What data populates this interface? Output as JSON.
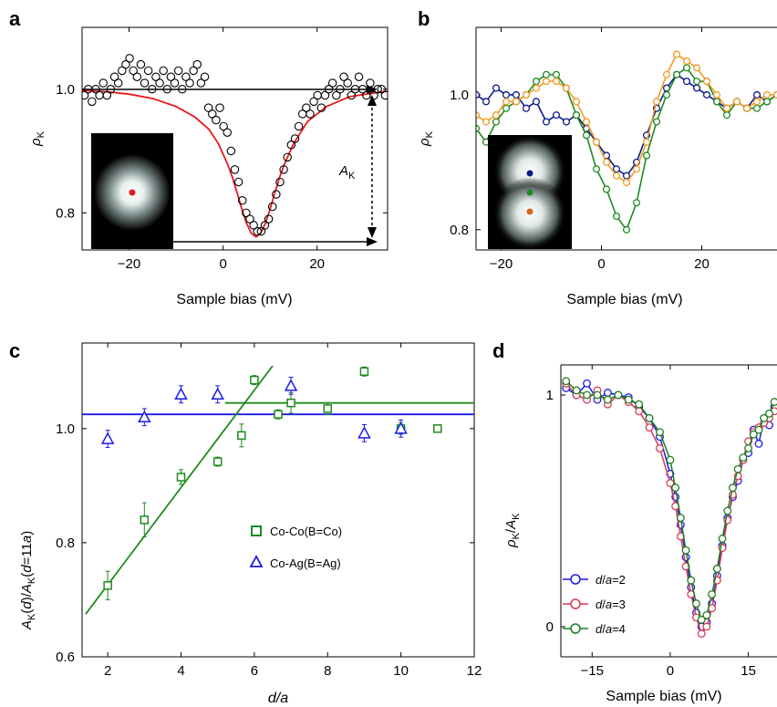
{
  "colors": {
    "fit_red": "#e8191c",
    "black": "#000000",
    "navy": "#0b1a8c",
    "green": "#1f8a1f",
    "orange": "#f39a22",
    "blue": "#1a1ae8",
    "darkgreen": "#1e7d1e",
    "crimson": "#d63a55"
  },
  "panels": {
    "a": {
      "letter": "a",
      "xlabel": "Sample bias (mV)",
      "ylabel": "ρK",
      "annotation": "AK"
    },
    "b": {
      "letter": "b",
      "xlabel": "Sample bias (mV)",
      "ylabel": "ρK"
    },
    "c": {
      "letter": "c",
      "xlabel": "d/a",
      "ylabel": "AK(d)/AK(d=11a)"
    },
    "d": {
      "letter": "d",
      "xlabel": "Sample bias (mV)",
      "ylabel": "ρK/AK"
    }
  },
  "chart_data": [
    {
      "id": "a",
      "type": "scatter",
      "xlim": [
        -30,
        35
      ],
      "ylim": [
        0.74,
        1.1
      ],
      "xticks": [
        -20,
        0,
        20
      ],
      "xtick_labels": [
        "−20",
        "0",
        "20"
      ],
      "yticks": [
        0.8,
        1.0
      ],
      "ytick_labels": [
        "0.8",
        "1.0"
      ],
      "series": [
        {
          "style": "open-circle",
          "color": "#000000",
          "x": [
            -29.5,
            -28.7,
            -27.9,
            -27.1,
            -26.3,
            -25.5,
            -24.7,
            -23.9,
            -23.1,
            -22.3,
            -21.5,
            -20.7,
            -19.9,
            -19.1,
            -18.3,
            -17.5,
            -16.7,
            -15.9,
            -15.1,
            -14.3,
            -13.5,
            -12.7,
            -11.9,
            -11.1,
            -10.3,
            -9.5,
            -8.7,
            -7.9,
            -7.1,
            -6.3,
            -5.5,
            -4.7,
            -3.9,
            -3.1,
            -2.3,
            -1.5,
            -0.7,
            0.1,
            0.9,
            1.7,
            2.5,
            3.3,
            4.1,
            4.9,
            5.7,
            6.5,
            7.3,
            8.1,
            8.9,
            9.7,
            10.5,
            11.3,
            12.1,
            12.9,
            13.7,
            14.5,
            15.3,
            16.1,
            16.9,
            17.7,
            18.5,
            19.3,
            20.1,
            20.9,
            21.7,
            22.5,
            23.3,
            24.1,
            24.9,
            25.7,
            26.5,
            27.3,
            28.1,
            28.9,
            29.7,
            30.5,
            31.3,
            32.1,
            32.9,
            33.7,
            34.5
          ],
          "y": [
            0.99,
            1.0,
            0.98,
            1.0,
            0.99,
            1.01,
            0.99,
            1.0,
            1.02,
            1.01,
            1.03,
            1.04,
            1.05,
            1.03,
            1.02,
            1.04,
            1.01,
            1.03,
            1.0,
            1.02,
            1.01,
            1.03,
            1.0,
            1.02,
            1.01,
            1.03,
            1.0,
            1.02,
            1.01,
            1.03,
            1.04,
            1.01,
            1.02,
            0.97,
            0.96,
            0.95,
            0.97,
            0.94,
            0.93,
            0.9,
            0.87,
            0.85,
            0.82,
            0.8,
            0.79,
            0.78,
            0.77,
            0.77,
            0.78,
            0.79,
            0.81,
            0.83,
            0.85,
            0.87,
            0.89,
            0.91,
            0.92,
            0.94,
            0.96,
            0.97,
            0.96,
            0.98,
            0.99,
            0.97,
            0.99,
            1.0,
            1.01,
            0.99,
            1.0,
            1.02,
            1.01,
            0.99,
            1.0,
            1.02,
            1.0,
            0.99,
            1.01,
            0.99,
            1.0,
            1.0,
            0.99
          ]
        },
        {
          "style": "fit-line",
          "color": "#e8191c",
          "x": [
            -30,
            -25,
            -20,
            -15,
            -10,
            -6,
            -3,
            -1,
            1,
            2,
            3,
            4,
            5,
            6,
            7,
            8,
            9,
            10,
            11,
            12,
            13,
            15,
            18,
            22,
            27,
            35
          ],
          "y": [
            0.998,
            0.996,
            0.992,
            0.985,
            0.972,
            0.955,
            0.935,
            0.912,
            0.878,
            0.857,
            0.832,
            0.806,
            0.783,
            0.767,
            0.761,
            0.767,
            0.783,
            0.806,
            0.832,
            0.857,
            0.878,
            0.912,
            0.948,
            0.972,
            0.988,
            0.997
          ]
        }
      ]
    },
    {
      "id": "b",
      "type": "line",
      "xlim": [
        -25,
        35
      ],
      "ylim": [
        0.77,
        1.1
      ],
      "xticks": [
        -20,
        0,
        20
      ],
      "xtick_labels": [
        "−20",
        "0",
        "20"
      ],
      "yticks": [
        0.8,
        1.0
      ],
      "ytick_labels": [
        "0.8",
        "1.0"
      ],
      "series": [
        {
          "color": "#0b1a8c",
          "x": [
            -25,
            -23,
            -21,
            -19,
            -17,
            -15,
            -13,
            -11,
            -9,
            -7,
            -5,
            -3,
            -1,
            1,
            3,
            5,
            7,
            9,
            11,
            13,
            15,
            17,
            19,
            21,
            23,
            25,
            27,
            29,
            31,
            33,
            35
          ],
          "y": [
            1.0,
            0.99,
            1.01,
            1.0,
            1.0,
            0.98,
            0.99,
            0.96,
            0.97,
            0.96,
            0.97,
            0.95,
            0.93,
            0.91,
            0.89,
            0.88,
            0.9,
            0.94,
            0.98,
            1.01,
            1.03,
            1.02,
            1.01,
            1.0,
            0.99,
            0.98,
            0.99,
            0.98,
            1.0,
            0.99,
            1.0
          ]
        },
        {
          "color": "#1f8a1f",
          "x": [
            -25,
            -23,
            -21,
            -19,
            -17,
            -15,
            -13,
            -11,
            -9,
            -7,
            -5,
            -3,
            -1,
            1,
            3,
            5,
            7,
            9,
            11,
            13,
            15,
            17,
            19,
            21,
            23,
            25,
            27,
            29,
            31,
            33,
            35
          ],
          "y": [
            0.95,
            0.93,
            0.96,
            0.98,
            0.99,
            1.0,
            1.02,
            1.03,
            1.03,
            1.01,
            0.97,
            0.94,
            0.89,
            0.86,
            0.82,
            0.8,
            0.84,
            0.91,
            0.96,
            1.0,
            1.03,
            1.04,
            1.02,
            1.02,
            0.99,
            0.97,
            0.99,
            0.98,
            0.98,
            0.99,
            1.0
          ]
        },
        {
          "color": "#f39a22",
          "x": [
            -25,
            -23,
            -21,
            -19,
            -17,
            -15,
            -13,
            -11,
            -9,
            -7,
            -5,
            -3,
            -1,
            1,
            3,
            5,
            7,
            9,
            11,
            13,
            15,
            17,
            19,
            21,
            23,
            25,
            27,
            29,
            31,
            33,
            35
          ],
          "y": [
            0.97,
            0.96,
            0.97,
            0.99,
            0.99,
            1.0,
            1.01,
            1.02,
            1.02,
            1.01,
            0.99,
            0.96,
            0.93,
            0.9,
            0.88,
            0.87,
            0.89,
            0.93,
            0.99,
            1.03,
            1.06,
            1.05,
            1.04,
            1.02,
            1.0,
            0.98,
            0.99,
            0.98,
            0.99,
            1.0,
            1.0
          ]
        }
      ]
    },
    {
      "id": "c",
      "type": "scatter",
      "xlim": [
        1.3,
        12
      ],
      "ylim": [
        0.6,
        1.15
      ],
      "xticks": [
        2,
        4,
        6,
        8,
        10,
        12
      ],
      "xtick_labels": [
        "2",
        "4",
        "6",
        "8",
        "10",
        "12"
      ],
      "yticks": [
        0.6,
        0.8,
        1.0
      ],
      "ytick_labels": [
        "0.6",
        "0.8",
        "1.0"
      ],
      "legend_position": "center",
      "series": [
        {
          "name": "Co-Co(B=Co)",
          "marker": "square",
          "color": "#1f8a1f",
          "x": [
            2,
            3,
            4,
            5,
            5.65,
            6,
            6.65,
            7,
            8,
            9,
            10,
            11
          ],
          "y": [
            0.725,
            0.84,
            0.915,
            0.942,
            0.988,
            1.085,
            1.025,
            1.045,
            1.035,
            1.1,
            1.0,
            1.0
          ],
          "err": [
            0.025,
            0.03,
            0.013,
            0.008,
            0.02,
            0.008,
            0.008,
            0.018,
            0.01,
            0.008,
            0.01,
            0.0
          ]
        },
        {
          "name": "Co-Ag(B=Ag)",
          "marker": "triangle",
          "color": "#1a1ae8",
          "x": [
            2,
            3,
            4,
            5,
            7,
            9,
            10
          ],
          "y": [
            0.982,
            1.02,
            1.06,
            1.06,
            1.075,
            0.992,
            1.0
          ],
          "err": [
            0.015,
            0.015,
            0.015,
            0.015,
            0.015,
            0.015,
            0.015
          ]
        }
      ],
      "lines": [
        {
          "color": "#1a1ae8",
          "x": [
            1.3,
            12
          ],
          "y": [
            1.025,
            1.025
          ]
        },
        {
          "color": "#1f8a1f",
          "x": [
            1.4,
            6.5
          ],
          "y": [
            0.675,
            1.11
          ]
        },
        {
          "color": "#1f8a1f",
          "x": [
            5.2,
            12
          ],
          "y": [
            1.045,
            1.045
          ]
        }
      ]
    },
    {
      "id": "d",
      "type": "line",
      "xlim": [
        -21,
        20.5
      ],
      "ylim": [
        -0.13,
        1.13
      ],
      "xticks": [
        -15,
        0,
        15
      ],
      "xtick_labels": [
        "−15",
        "0",
        "15"
      ],
      "yticks": [
        0,
        1
      ],
      "ytick_labels": [
        "0",
        "1"
      ],
      "legend_position": "bottom-left",
      "series": [
        {
          "name": "d/a=2",
          "color": "#1a1ae8",
          "x": [
            -20,
            -18,
            -16,
            -14,
            -12,
            -10,
            -8,
            -6,
            -4,
            -2,
            0,
            1,
            2,
            3,
            4,
            5,
            6,
            7,
            8,
            9,
            10,
            11,
            12,
            13,
            14,
            15,
            16,
            17,
            18,
            19,
            20
          ],
          "y": [
            1.03,
            1.0,
            1.05,
            0.98,
            1.01,
            1.0,
            0.99,
            0.95,
            0.9,
            0.82,
            0.66,
            0.56,
            0.44,
            0.3,
            0.17,
            0.06,
            0.0,
            0.02,
            0.1,
            0.22,
            0.35,
            0.47,
            0.56,
            0.63,
            0.72,
            0.75,
            0.85,
            0.79,
            0.9,
            0.87,
            0.95
          ]
        },
        {
          "name": "d/a=3",
          "color": "#d63a55",
          "x": [
            -20,
            -18,
            -16,
            -14,
            -12,
            -10,
            -8,
            -6,
            -4,
            -2,
            0,
            1,
            2,
            3,
            4,
            5,
            6,
            7,
            8,
            9,
            10,
            11,
            12,
            13,
            14,
            15,
            16,
            17,
            18,
            19,
            20
          ],
          "y": [
            1.05,
            1.0,
            0.98,
            1.02,
            0.96,
            1.0,
            0.97,
            0.93,
            0.86,
            0.77,
            0.62,
            0.52,
            0.39,
            0.26,
            0.14,
            0.04,
            -0.03,
            0.0,
            0.08,
            0.2,
            0.34,
            0.46,
            0.57,
            0.65,
            0.72,
            0.8,
            0.84,
            0.86,
            0.88,
            0.9,
            0.93
          ]
        },
        {
          "name": "d/a=4",
          "color": "#1e7d1e",
          "x": [
            -20,
            -18,
            -16,
            -14,
            -12,
            -10,
            -8,
            -6,
            -4,
            -2,
            0,
            1,
            2,
            3,
            4,
            5,
            6,
            7,
            8,
            9,
            10,
            11,
            12,
            13,
            14,
            15,
            16,
            17,
            18,
            19,
            20
          ],
          "y": [
            1.06,
            1.02,
            1.0,
            1.0,
            0.98,
            1.0,
            0.98,
            0.96,
            0.9,
            0.84,
            0.72,
            0.6,
            0.47,
            0.33,
            0.2,
            0.1,
            0.03,
            0.05,
            0.14,
            0.25,
            0.38,
            0.5,
            0.6,
            0.68,
            0.73,
            0.77,
            0.83,
            0.85,
            0.9,
            0.92,
            0.97
          ]
        }
      ]
    }
  ]
}
